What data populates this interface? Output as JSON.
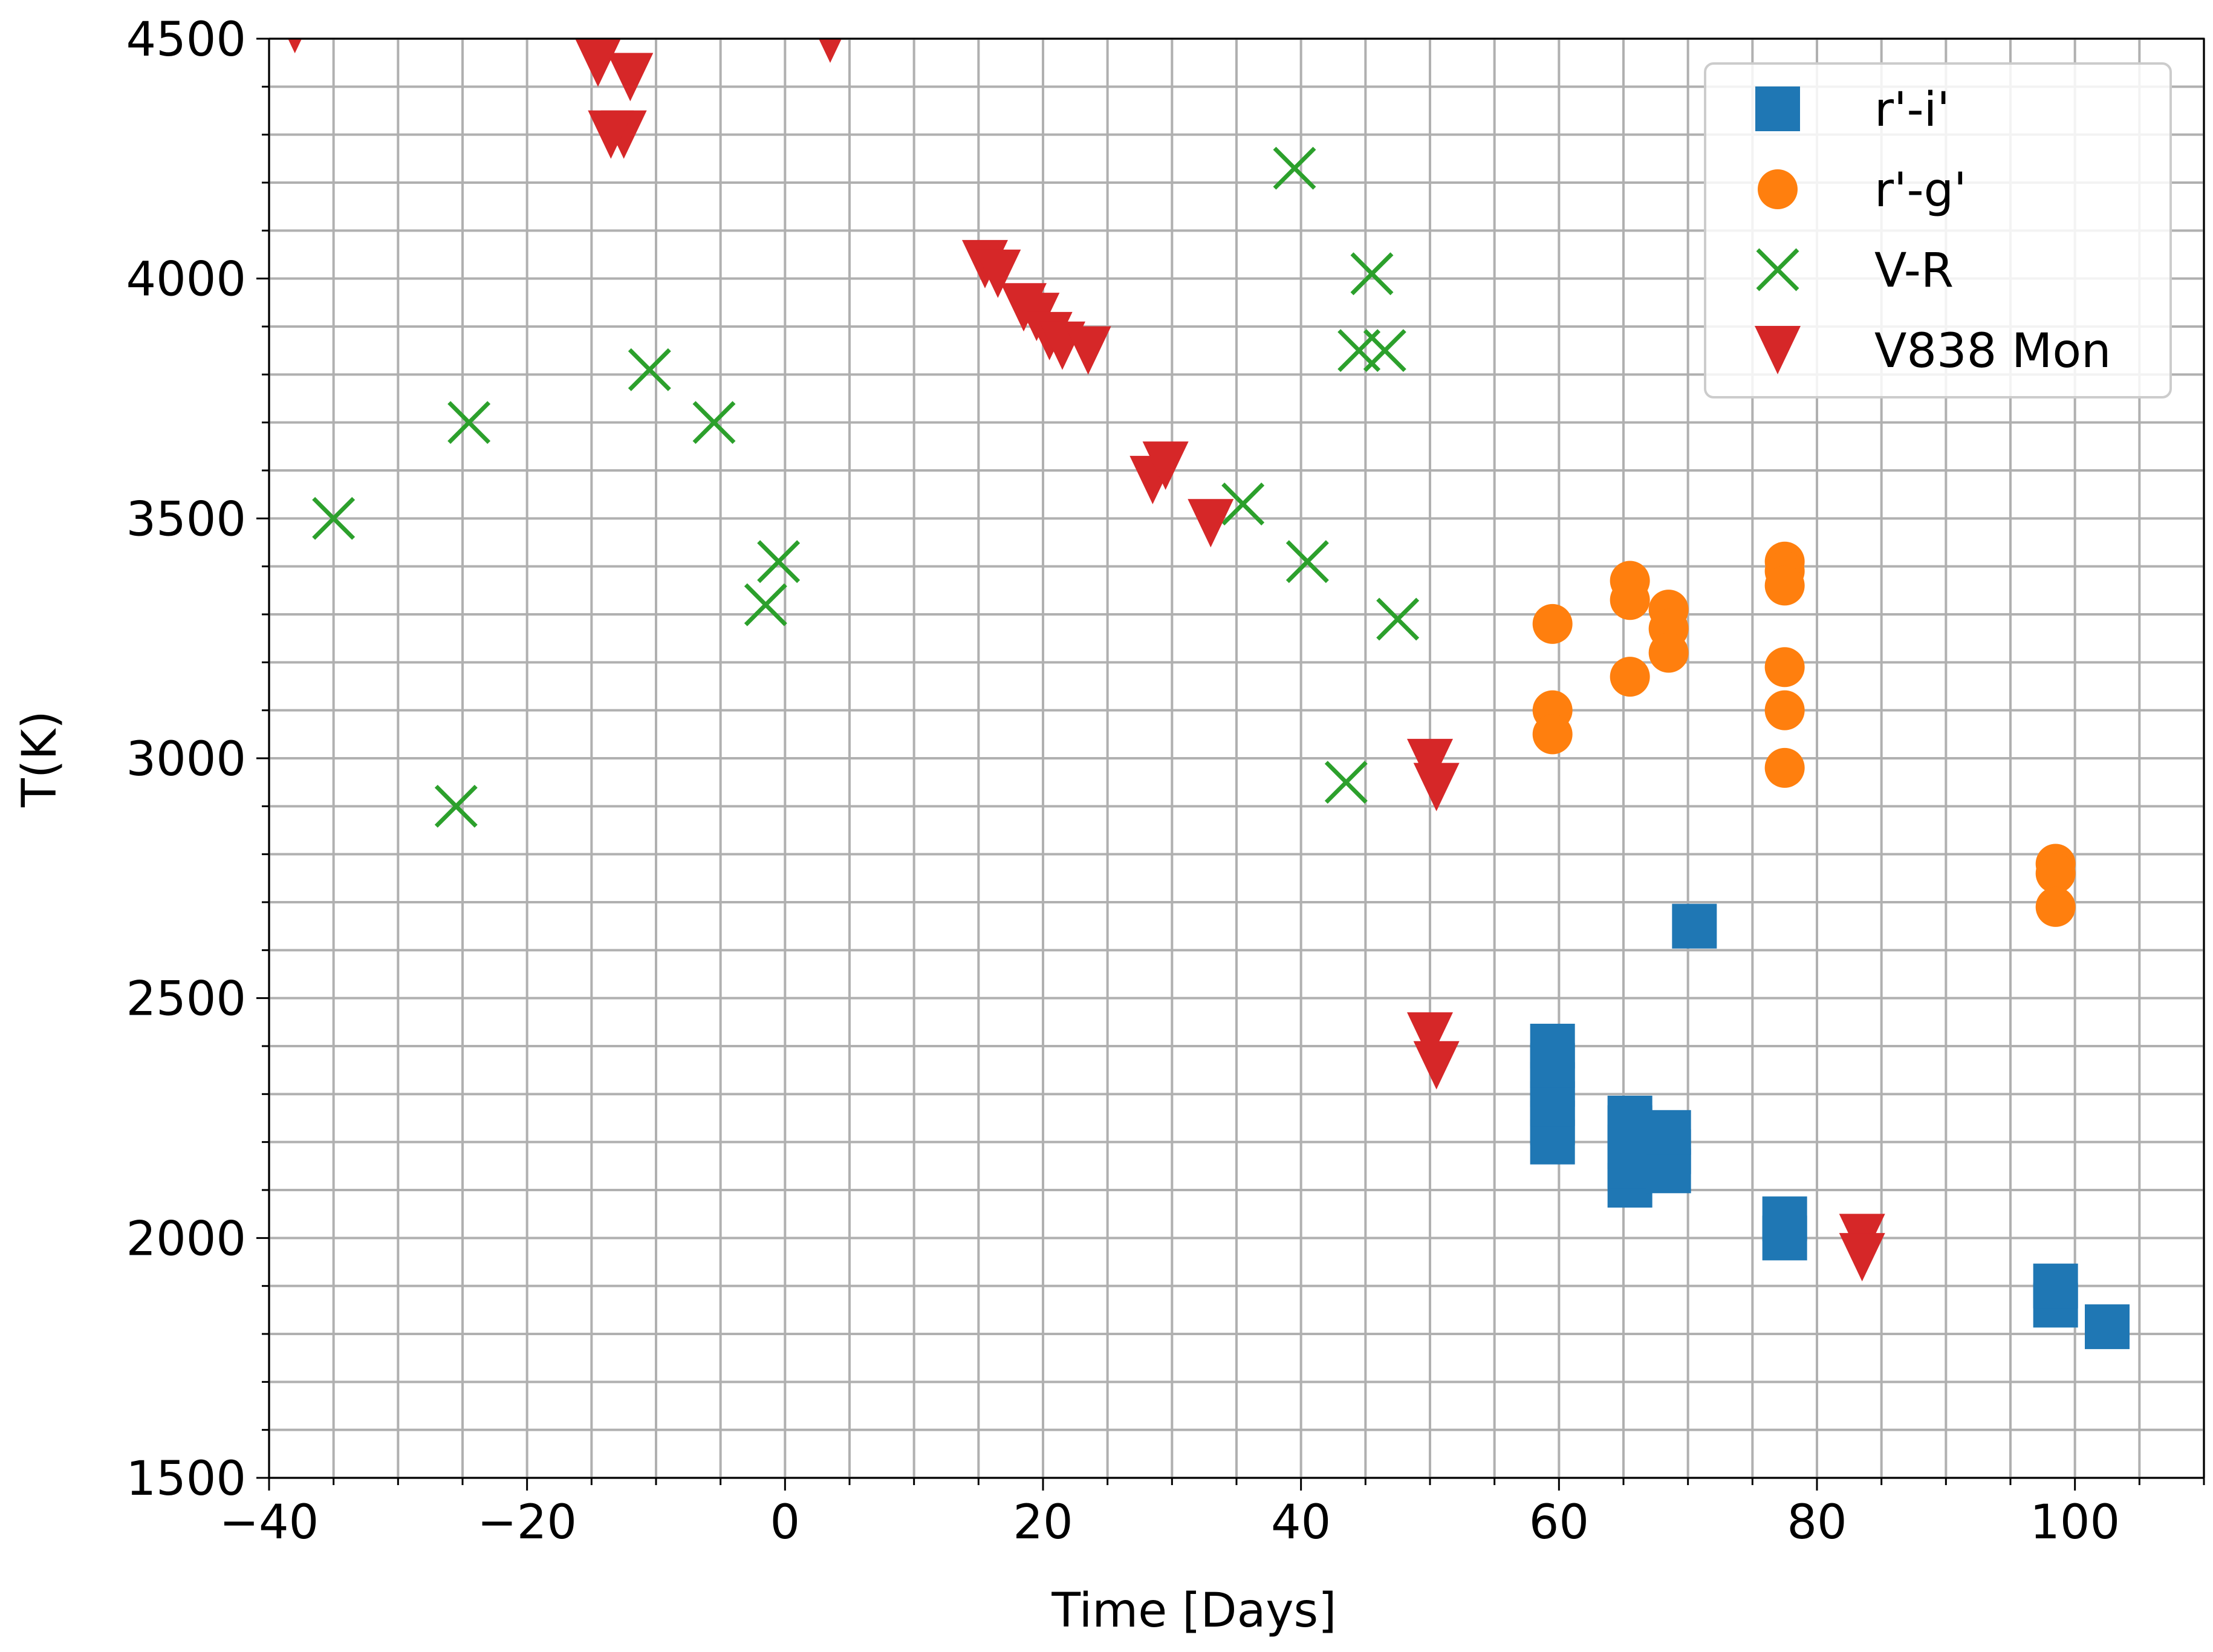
{
  "chart_data": {
    "type": "scatter",
    "title": "",
    "xlabel": "Time [Days]",
    "ylabel": "T(K)",
    "xlim": [
      -40,
      110
    ],
    "ylim": [
      1500,
      4500
    ],
    "grid": true,
    "legend_position": "top-right",
    "x_ticks": [
      -40,
      -20,
      0,
      20,
      40,
      60,
      80,
      100
    ],
    "x_tick_labels": [
      "−40",
      "−20",
      "0",
      "20",
      "40",
      "60",
      "80",
      "100"
    ],
    "y_ticks": [
      1500,
      2000,
      2500,
      3000,
      3500,
      4000,
      4500
    ],
    "y_tick_labels": [
      "1500",
      "2000",
      "2500",
      "3000",
      "3500",
      "4000",
      "4500"
    ],
    "series": [
      {
        "name": "r'-i'",
        "marker": "square",
        "color": "#1f77b4",
        "points": [
          [
            59.5,
            2200
          ],
          [
            59.5,
            2240
          ],
          [
            59.5,
            2280
          ],
          [
            59.5,
            2320
          ],
          [
            59.5,
            2360
          ],
          [
            59.5,
            2400
          ],
          [
            65.5,
            2110
          ],
          [
            65.5,
            2150
          ],
          [
            65.5,
            2190
          ],
          [
            65.5,
            2230
          ],
          [
            65.5,
            2250
          ],
          [
            68.5,
            2140
          ],
          [
            68.5,
            2180
          ],
          [
            68.5,
            2220
          ],
          [
            70.5,
            2650
          ],
          [
            77.5,
            2000
          ],
          [
            77.5,
            2040
          ],
          [
            98.5,
            1860
          ],
          [
            98.5,
            1900
          ],
          [
            102.5,
            1815
          ]
        ]
      },
      {
        "name": "r'-g'",
        "marker": "circle",
        "color": "#ff7f0e",
        "points": [
          [
            59.5,
            3280
          ],
          [
            59.5,
            3100
          ],
          [
            59.5,
            3050
          ],
          [
            65.5,
            3370
          ],
          [
            65.5,
            3330
          ],
          [
            65.5,
            3170
          ],
          [
            68.5,
            3310
          ],
          [
            68.5,
            3270
          ],
          [
            68.5,
            3220
          ],
          [
            77.5,
            3410
          ],
          [
            77.5,
            3390
          ],
          [
            77.5,
            3360
          ],
          [
            77.5,
            3190
          ],
          [
            77.5,
            3100
          ],
          [
            77.5,
            2980
          ],
          [
            98.5,
            2780
          ],
          [
            98.5,
            2760
          ],
          [
            98.5,
            2690
          ]
        ]
      },
      {
        "name": "V-R",
        "marker": "x",
        "color": "#2ca02c",
        "points": [
          [
            -35,
            3500
          ],
          [
            -25.5,
            2900
          ],
          [
            -24.5,
            3700
          ],
          [
            -10.5,
            3810
          ],
          [
            -5.5,
            3700
          ],
          [
            -1.5,
            3320
          ],
          [
            -0.5,
            3410
          ],
          [
            35.5,
            3530
          ],
          [
            39.5,
            4230
          ],
          [
            40.5,
            3410
          ],
          [
            43.5,
            2950
          ],
          [
            44.5,
            3850
          ],
          [
            45.5,
            4010
          ],
          [
            46.5,
            3850
          ],
          [
            47.5,
            3290
          ]
        ]
      },
      {
        "name": "V838 Mon",
        "marker": "triangle-down",
        "color": "#d62728",
        "points": [
          [
            -38,
            4520
          ],
          [
            -15,
            4480
          ],
          [
            -14.5,
            4450
          ],
          [
            -12,
            4420
          ],
          [
            -12.5,
            4300
          ],
          [
            -13.5,
            4300
          ],
          [
            3.5,
            4500
          ],
          [
            15.5,
            4030
          ],
          [
            16.5,
            4010
          ],
          [
            18.5,
            3940
          ],
          [
            19.5,
            3920
          ],
          [
            20.5,
            3880
          ],
          [
            21.5,
            3860
          ],
          [
            23.5,
            3850
          ],
          [
            28.5,
            3580
          ],
          [
            29.5,
            3610
          ],
          [
            33,
            3490
          ],
          [
            50,
            2990
          ],
          [
            50.5,
            2940
          ],
          [
            50,
            2420
          ],
          [
            50.5,
            2360
          ],
          [
            83.5,
            2000
          ],
          [
            83.5,
            1960
          ]
        ]
      }
    ]
  }
}
